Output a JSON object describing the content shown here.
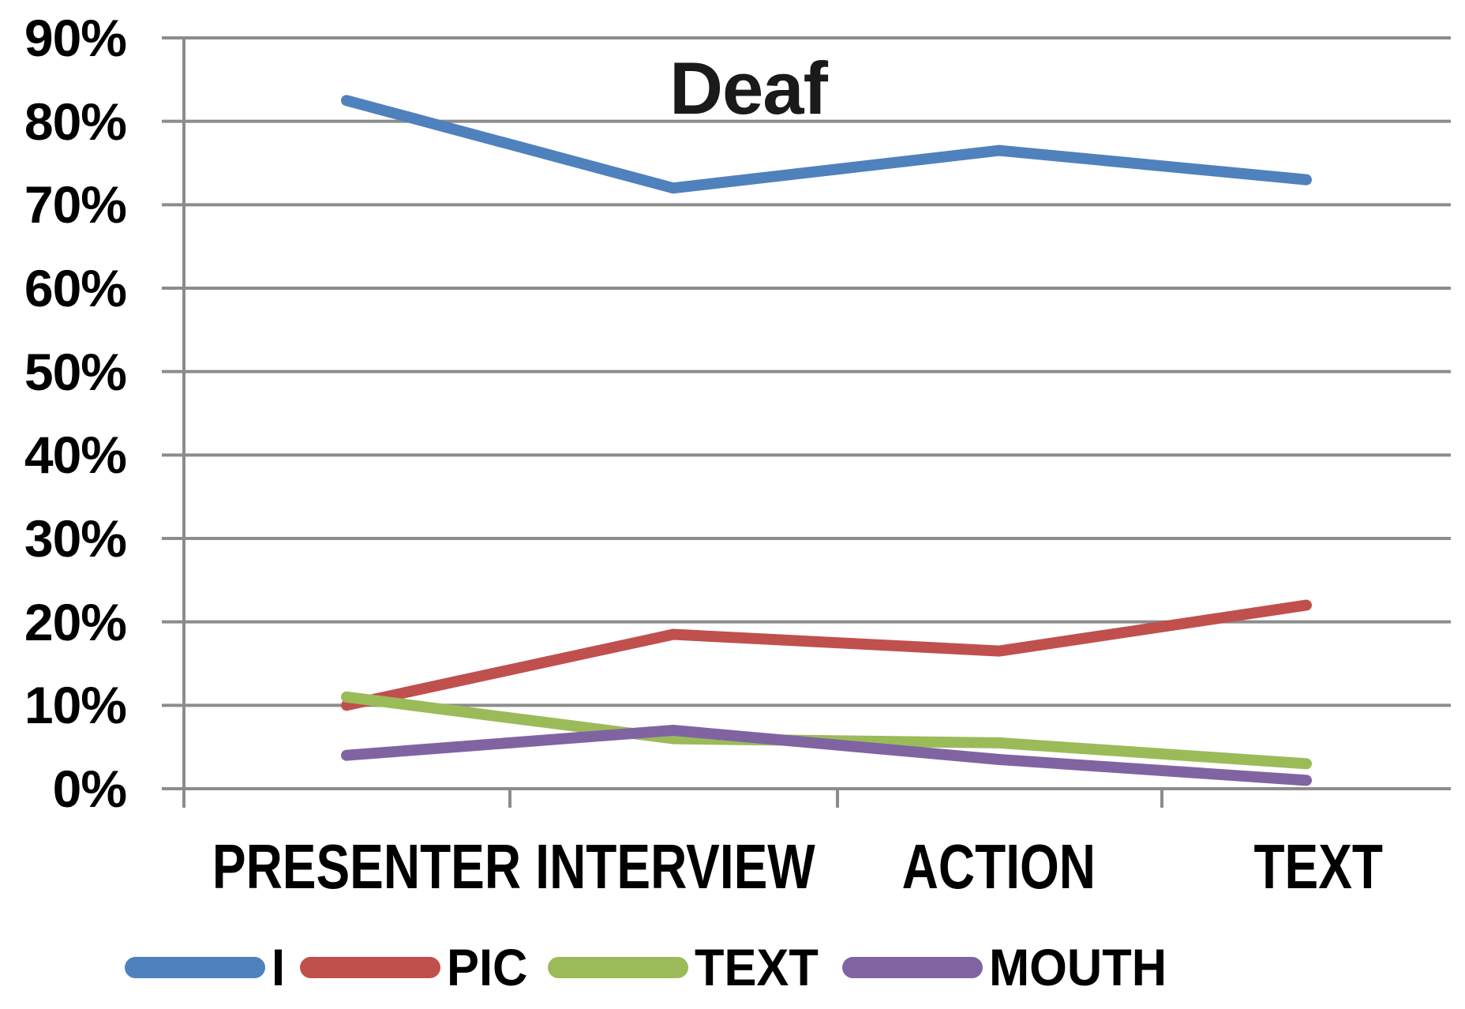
{
  "chart_data": {
    "type": "line",
    "title": "Deaf",
    "categories": [
      "PRESENTER",
      "INTERVIEW",
      "ACTION",
      "TEXT"
    ],
    "series": [
      {
        "name": "I",
        "color": "#4F81BD",
        "values": [
          82.5,
          72.0,
          76.5,
          73.0
        ]
      },
      {
        "name": "PIC",
        "color": "#C0504D",
        "values": [
          10.0,
          18.5,
          16.5,
          22.0
        ]
      },
      {
        "name": "TEXT",
        "color": "#9BBB59",
        "values": [
          11.0,
          6.0,
          5.5,
          3.0
        ]
      },
      {
        "name": "MOUTH",
        "color": "#8064A2",
        "values": [
          4.0,
          7.0,
          3.5,
          1.0
        ]
      }
    ],
    "y_ticks": [
      "90%",
      "80%",
      "70%",
      "60%",
      "50%",
      "40%",
      "30%",
      "20%",
      "10%",
      "0%"
    ],
    "ylim": [
      0,
      90
    ],
    "unit": "%",
    "grid": true,
    "gridline_color": "#8C8C8C",
    "legend_position": "bottom"
  }
}
